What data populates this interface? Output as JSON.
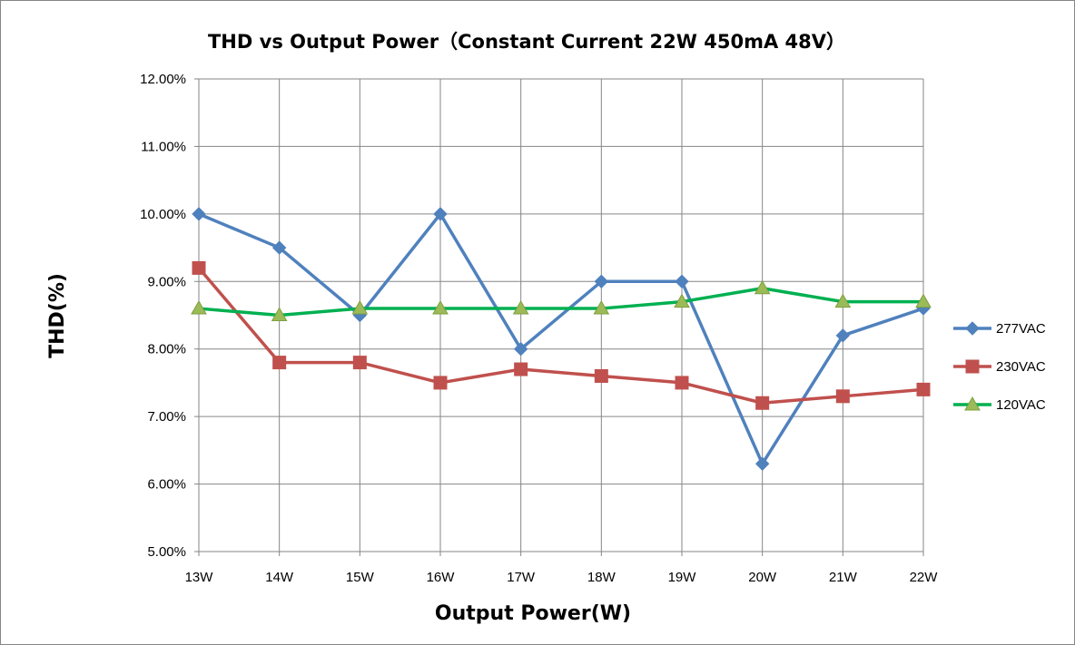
{
  "chart_data": {
    "type": "line",
    "title": "THD vs Output Power（Constant Current 22W  450mA 48V）",
    "xlabel": "Output Power(W)",
    "ylabel": "THD(%)",
    "categories": [
      "13W",
      "14W",
      "15W",
      "16W",
      "17W",
      "18W",
      "19W",
      "20W",
      "21W",
      "22W"
    ],
    "ylim": [
      5,
      12
    ],
    "yticks": [
      5,
      6,
      7,
      8,
      9,
      10,
      11,
      12
    ],
    "ytick_labels": [
      "5.00%",
      "6.00%",
      "7.00%",
      "8.00%",
      "9.00%",
      "10.00%",
      "11.00%",
      "12.00%"
    ],
    "grid": "horizontal",
    "legend_position": "right",
    "series": [
      {
        "name": "277VAC",
        "marker": "diamond",
        "color": "#4F81BD",
        "values": [
          10.0,
          9.5,
          8.5,
          10.0,
          8.0,
          9.0,
          9.0,
          6.3,
          8.2,
          8.6
        ]
      },
      {
        "name": "230VAC",
        "marker": "square",
        "color": "#C0504D",
        "values": [
          9.2,
          7.8,
          7.8,
          7.5,
          7.7,
          7.6,
          7.5,
          7.2,
          7.3,
          7.4
        ]
      },
      {
        "name": "120VAC",
        "marker": "triangle",
        "color": "#00B050",
        "marker_fill": "#9BBB59",
        "values": [
          8.6,
          8.5,
          8.6,
          8.6,
          8.6,
          8.6,
          8.7,
          8.9,
          8.7,
          8.7
        ]
      }
    ]
  }
}
